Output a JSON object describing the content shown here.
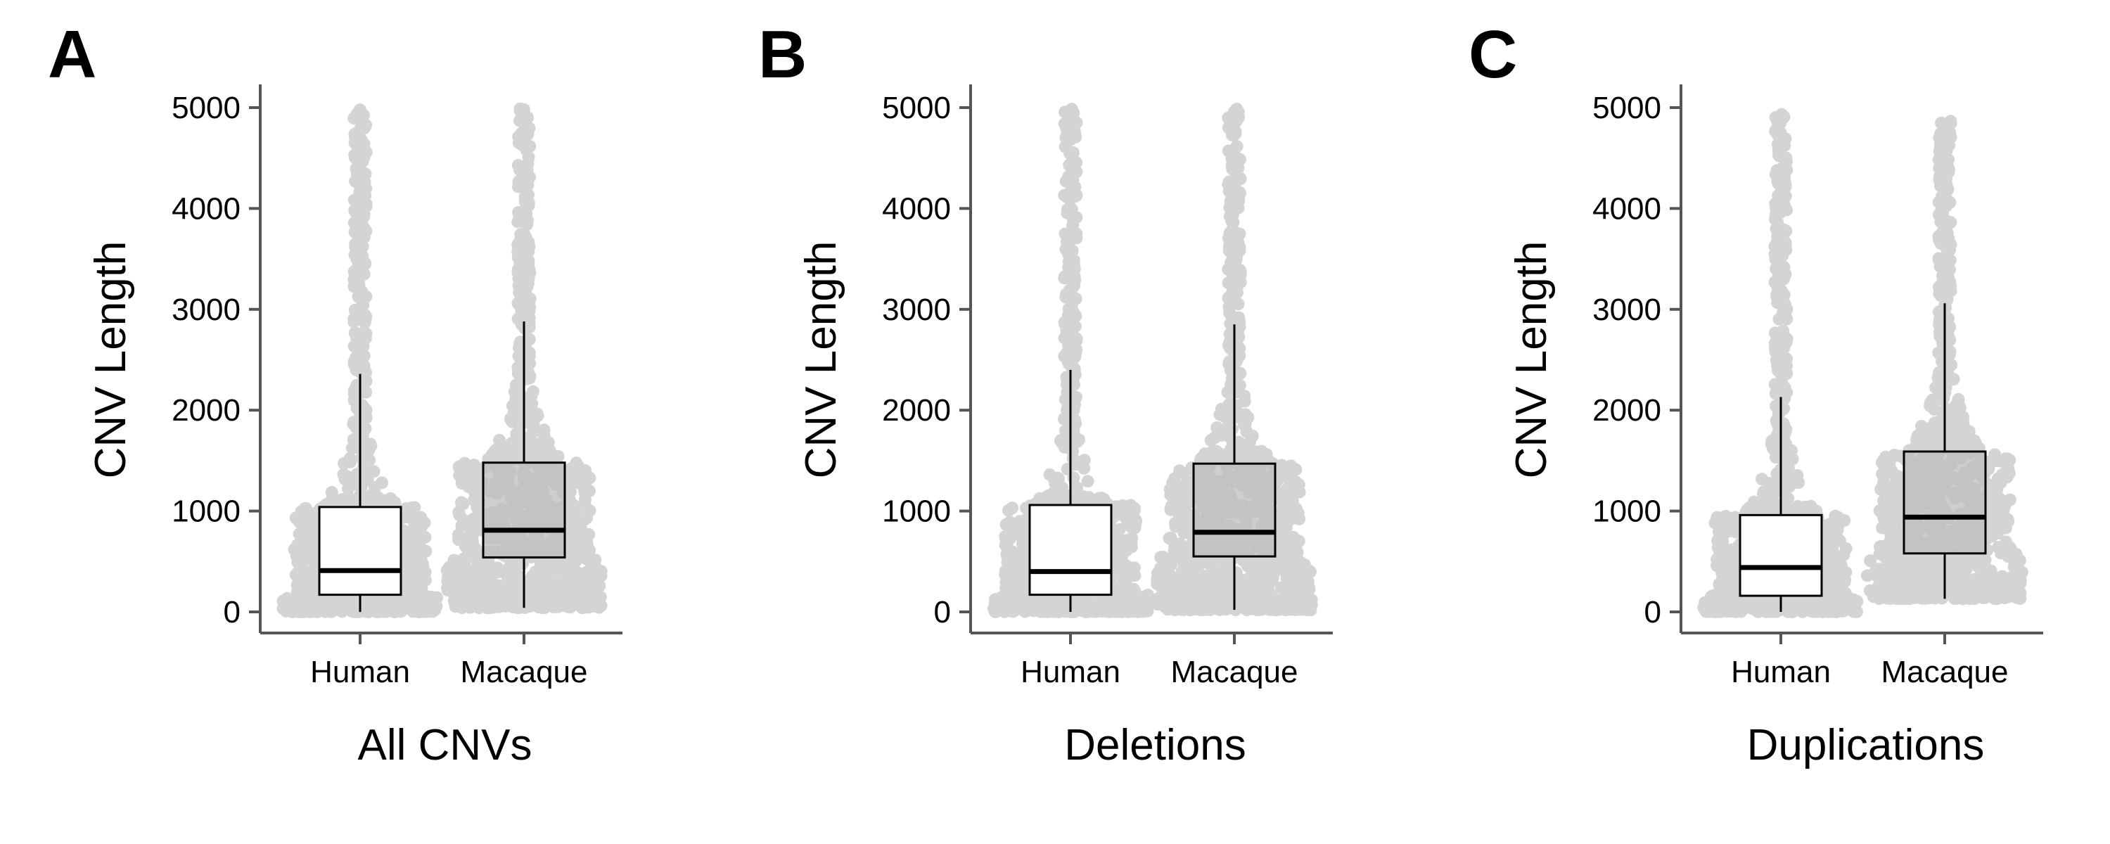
{
  "colors": {
    "axis": "#555555",
    "points": "#d4d4d4",
    "human_box_fill": "#ffffff",
    "macaque_box_fill": "#bdbdbd",
    "box_stroke": "#000000"
  },
  "chart_data": [
    {
      "type": "boxplot",
      "panel_label": "A",
      "xlabel": "All CNVs",
      "ylabel": "CNV Length",
      "ylim": [
        0,
        5000
      ],
      "yticks": [
        0,
        1000,
        2000,
        3000,
        4000,
        5000
      ],
      "categories": [
        "Human",
        "Macaque"
      ],
      "boxes": [
        {
          "category": "Human",
          "whisker_low": 0,
          "q1": 170,
          "median": 410,
          "q3": 1040,
          "whisker_high": 2360,
          "max_point": 5000
        },
        {
          "category": "Macaque",
          "whisker_low": 40,
          "q1": 540,
          "median": 810,
          "q3": 1480,
          "whisker_high": 2880,
          "max_point": 5000
        }
      ]
    },
    {
      "type": "boxplot",
      "panel_label": "B",
      "xlabel": "Deletions",
      "ylabel": "CNV Length",
      "ylim": [
        0,
        5000
      ],
      "yticks": [
        0,
        1000,
        2000,
        3000,
        4000,
        5000
      ],
      "categories": [
        "Human",
        "Macaque"
      ],
      "boxes": [
        {
          "category": "Human",
          "whisker_low": 0,
          "q1": 170,
          "median": 400,
          "q3": 1060,
          "whisker_high": 2400,
          "max_point": 5000
        },
        {
          "category": "Macaque",
          "whisker_low": 20,
          "q1": 550,
          "median": 790,
          "q3": 1470,
          "whisker_high": 2850,
          "max_point": 5000
        }
      ]
    },
    {
      "type": "boxplot",
      "panel_label": "C",
      "xlabel": "Duplications",
      "ylabel": "CNV Length",
      "ylim": [
        0,
        5000
      ],
      "yticks": [
        0,
        1000,
        2000,
        3000,
        4000,
        5000
      ],
      "categories": [
        "Human",
        "Macaque"
      ],
      "boxes": [
        {
          "category": "Human",
          "whisker_low": 0,
          "q1": 160,
          "median": 440,
          "q3": 960,
          "whisker_high": 2130,
          "max_point": 4950
        },
        {
          "category": "Macaque",
          "whisker_low": 130,
          "q1": 580,
          "median": 940,
          "q3": 1590,
          "whisker_high": 3060,
          "max_point": 4870
        }
      ]
    }
  ]
}
